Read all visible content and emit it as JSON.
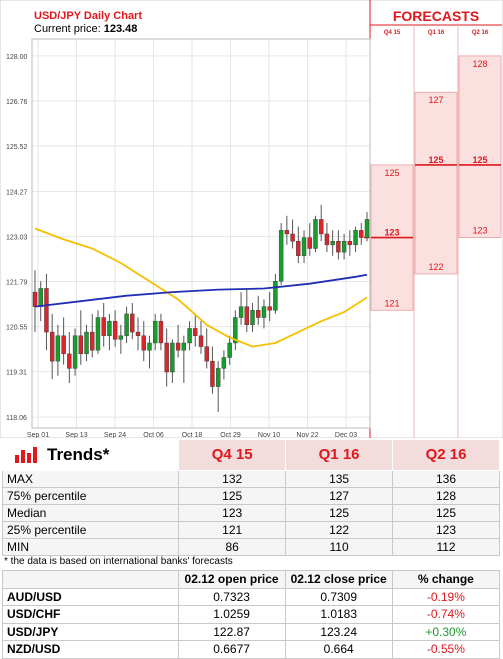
{
  "chart_data": {
    "type": "candlestick",
    "title": "USD/JPY Daily Chart",
    "current_price_label": "Current price:",
    "current_price": "123.48",
    "y_ticks": [
      "128.00",
      "126.76",
      "125.52",
      "124.27",
      "123.03",
      "121.79",
      "120.55",
      "119.31",
      "118.06"
    ],
    "x_ticks": [
      "Sep 01",
      "Sep 13",
      "Sep 24",
      "Oct 06",
      "Oct 18",
      "Oct 29",
      "Nov 10",
      "Nov 22",
      "Dec 03"
    ],
    "ylim": [
      117.76,
      128.3
    ],
    "candles": [
      [
        121.5,
        122.1,
        120.4,
        121.1
      ],
      [
        121.1,
        121.8,
        120.7,
        121.6
      ],
      [
        121.6,
        122.0,
        119.9,
        120.4
      ],
      [
        120.4,
        120.9,
        119.1,
        119.6
      ],
      [
        119.6,
        120.6,
        119.2,
        120.3
      ],
      [
        120.3,
        120.8,
        119.5,
        119.8
      ],
      [
        119.8,
        120.4,
        119.0,
        119.4
      ],
      [
        119.4,
        120.5,
        119.2,
        120.3
      ],
      [
        120.3,
        121.0,
        119.5,
        119.8
      ],
      [
        119.8,
        120.6,
        119.6,
        120.4
      ],
      [
        120.4,
        120.9,
        119.7,
        119.9
      ],
      [
        119.9,
        121.0,
        119.8,
        120.8
      ],
      [
        120.8,
        121.2,
        120.0,
        120.3
      ],
      [
        120.3,
        120.9,
        119.9,
        120.7
      ],
      [
        120.7,
        121.0,
        120.0,
        120.2
      ],
      [
        120.2,
        120.6,
        119.8,
        120.3
      ],
      [
        120.3,
        121.1,
        120.1,
        120.9
      ],
      [
        120.9,
        121.2,
        120.2,
        120.4
      ],
      [
        120.4,
        120.8,
        119.9,
        120.3
      ],
      [
        120.3,
        120.7,
        119.6,
        119.9
      ],
      [
        119.9,
        120.3,
        119.4,
        120.1
      ],
      [
        120.1,
        120.9,
        119.9,
        120.7
      ],
      [
        120.7,
        120.9,
        119.9,
        120.1
      ],
      [
        120.1,
        120.5,
        118.9,
        119.3
      ],
      [
        119.3,
        120.2,
        119.0,
        120.1
      ],
      [
        120.1,
        120.6,
        119.7,
        119.9
      ],
      [
        119.9,
        120.3,
        119.0,
        120.1
      ],
      [
        120.1,
        120.7,
        119.9,
        120.5
      ],
      [
        120.5,
        120.9,
        120.0,
        120.3
      ],
      [
        120.3,
        120.7,
        119.8,
        120.0
      ],
      [
        120.0,
        120.5,
        119.4,
        119.6
      ],
      [
        119.6,
        120.0,
        118.7,
        118.9
      ],
      [
        118.9,
        119.6,
        118.2,
        119.4
      ],
      [
        119.4,
        119.9,
        119.1,
        119.7
      ],
      [
        119.7,
        120.3,
        119.5,
        120.1
      ],
      [
        120.1,
        121.0,
        119.9,
        120.8
      ],
      [
        120.8,
        121.5,
        120.6,
        121.1
      ],
      [
        121.1,
        121.6,
        120.4,
        120.6
      ],
      [
        120.6,
        121.2,
        120.4,
        121.0
      ],
      [
        121.0,
        121.4,
        120.6,
        120.8
      ],
      [
        120.8,
        121.3,
        120.5,
        121.1
      ],
      [
        121.1,
        121.5,
        120.7,
        121.0
      ],
      [
        121.0,
        122.0,
        120.9,
        121.8
      ],
      [
        121.8,
        123.4,
        121.7,
        123.2
      ],
      [
        123.2,
        123.6,
        122.8,
        123.1
      ],
      [
        123.1,
        123.5,
        122.7,
        122.9
      ],
      [
        122.9,
        123.3,
        122.3,
        122.5
      ],
      [
        122.5,
        123.2,
        122.3,
        123.0
      ],
      [
        123.0,
        123.4,
        122.5,
        122.7
      ],
      [
        122.7,
        123.6,
        122.6,
        123.5
      ],
      [
        123.5,
        123.9,
        122.9,
        123.1
      ],
      [
        123.1,
        123.4,
        122.6,
        122.8
      ],
      [
        122.8,
        123.2,
        122.5,
        122.9
      ],
      [
        122.9,
        123.2,
        122.4,
        122.6
      ],
      [
        122.6,
        123.1,
        122.4,
        122.9
      ],
      [
        122.9,
        123.2,
        122.5,
        122.8
      ],
      [
        122.8,
        123.3,
        122.6,
        123.2
      ],
      [
        123.2,
        123.4,
        122.8,
        123.0
      ],
      [
        123.0,
        123.7,
        122.9,
        123.5
      ]
    ],
    "ma_blue": [
      [
        0,
        121.1
      ],
      [
        8,
        121.25
      ],
      [
        16,
        121.4
      ],
      [
        24,
        121.5
      ],
      [
        32,
        121.57
      ],
      [
        40,
        121.6
      ],
      [
        48,
        121.73
      ],
      [
        56,
        121.92
      ],
      [
        58,
        121.98
      ]
    ],
    "ma_yellow": [
      [
        0,
        123.25
      ],
      [
        5,
        122.95
      ],
      [
        10,
        122.7
      ],
      [
        15,
        122.3
      ],
      [
        20,
        121.8
      ],
      [
        25,
        121.3
      ],
      [
        30,
        120.6
      ],
      [
        34,
        120.25
      ],
      [
        38,
        120.0
      ],
      [
        42,
        120.1
      ],
      [
        46,
        120.4
      ],
      [
        50,
        120.7
      ],
      [
        54,
        120.95
      ],
      [
        58,
        121.35
      ]
    ],
    "forecasts": {
      "title": "FORECASTS",
      "columns": [
        {
          "label": "Q4 15",
          "max": 132,
          "p75": 125,
          "median": 123,
          "p25": 121,
          "min": 86
        },
        {
          "label": "Q1 16",
          "max": 135,
          "p75": 127,
          "median": 125,
          "p25": 122,
          "min": 110
        },
        {
          "label": "Q2 16",
          "max": 136,
          "p75": 128,
          "median": 125,
          "p25": 123,
          "min": 112
        }
      ]
    },
    "colors": {
      "up": "#1a9b2d",
      "down": "#d9262c",
      "ma_blue": "#1f2fb5",
      "ma_yellow": "#f5c000",
      "forecast_red": "#e0171c",
      "forecast_fill": "#fbe0e0"
    }
  },
  "trends": {
    "title": "Trends*",
    "headers": [
      "Q4 15",
      "Q1 16",
      "Q2 16"
    ],
    "rows": [
      {
        "label": "MAX",
        "values": [
          "132",
          "135",
          "136"
        ]
      },
      {
        "label": "75% percentile",
        "values": [
          "125",
          "127",
          "128"
        ]
      },
      {
        "label": "Median",
        "values": [
          "123",
          "125",
          "125"
        ]
      },
      {
        "label": "25% percentile",
        "values": [
          "121",
          "122",
          "123"
        ]
      },
      {
        "label": "MIN",
        "values": [
          "86",
          "110",
          "112"
        ]
      }
    ],
    "note": "* the data is based on international banks' forecasts"
  },
  "fx": {
    "headers": [
      "",
      "02.12 open price",
      "02.12 close price",
      "% change"
    ],
    "rows": [
      {
        "pair": "AUD/USD",
        "open": "0.7323",
        "close": "0.7309",
        "change": "-0.19%",
        "dir": "neg"
      },
      {
        "pair": "USD/CHF",
        "open": "1.0259",
        "close": "1.0183",
        "change": "-0.74%",
        "dir": "neg"
      },
      {
        "pair": "USD/JPY",
        "open": "122.87",
        "close": "123.24",
        "change": "+0.30%",
        "dir": "pos"
      },
      {
        "pair": "NZD/USD",
        "open": "0.6677",
        "close": "0.664",
        "change": "-0.55%",
        "dir": "neg"
      }
    ]
  }
}
